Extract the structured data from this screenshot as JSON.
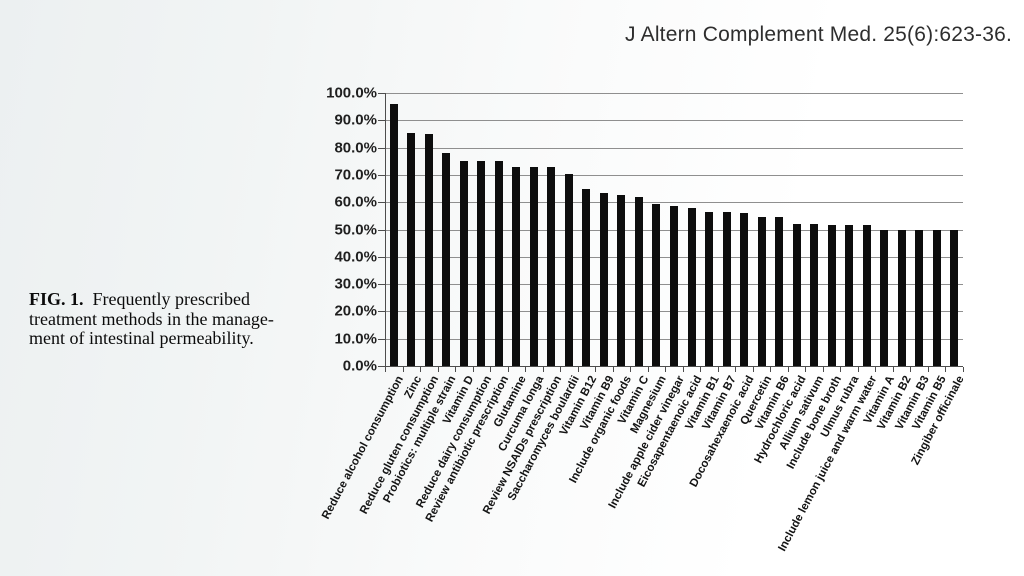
{
  "header": {
    "journal_ref": "J Altern Complement Med. 25(6):623-36."
  },
  "caption": {
    "fig_label": "FIG. 1.",
    "line1": "Frequently prescribed",
    "line2": "treatment methods in the manage-",
    "line3": "ment of intestinal permeability."
  },
  "colors": {
    "bar": "#0d0d0d",
    "gridline": "#8f8f8f",
    "axis": "#4d4d4d",
    "background_left": "#ecf0f1",
    "background_right": "#ffffff"
  },
  "chart_data": {
    "type": "bar",
    "title": "",
    "xlabel": "",
    "ylabel": "",
    "ylim": [
      0,
      100
    ],
    "ytick_step": 10,
    "ytick_suffix": "%",
    "ytick_decimals": 1,
    "grid": true,
    "legend": false,
    "bar_color": "#0d0d0d",
    "x_label_rotation_deg": -62,
    "categories": [
      "Reduce alcohol consumption",
      "Zinc",
      "Reduce gluten consumption",
      "Probiotics: multiple strain",
      "Vitamin D",
      "Reduce dairy consumption",
      "Review antibiotic prescription",
      "Glutamine",
      "Curcuma longa",
      "Review NSAIDs prescription",
      "Saccharomyces boulardii",
      "Vitamin B12",
      "Vitamin B9",
      "Include organic foods",
      "Vitamin C",
      "Magnesium",
      "Include apple cider vinegar",
      "Eicosapentaenoic acid",
      "Vitamin B1",
      "Vitamin B7",
      "Docosahexaenoic acid",
      "Quercetin",
      "Vitamin B6",
      "Hydrochloric acid",
      "Allium sativum",
      "Include bone broth",
      "Ulmus rubra",
      "Include lemon juice and warm water",
      "Vitamin A",
      "Vitamin B2",
      "Vitamin B3",
      "Vitamin B5",
      "Zingiber officinale"
    ],
    "values": [
      96,
      85.5,
      85,
      78,
      75,
      75,
      75,
      73,
      73,
      73,
      70.5,
      65,
      63.5,
      62.5,
      62,
      59.5,
      58.5,
      58,
      56.5,
      56.5,
      56,
      54.5,
      54.5,
      52,
      52,
      51.5,
      51.5,
      51.5,
      50,
      50,
      50,
      50,
      50
    ]
  }
}
